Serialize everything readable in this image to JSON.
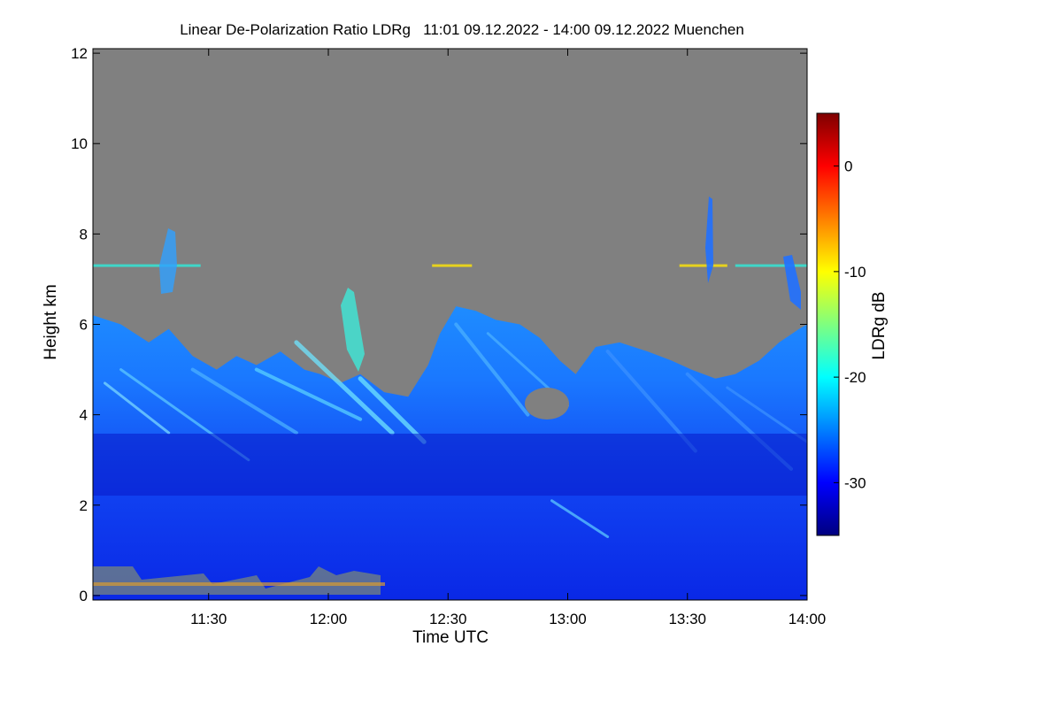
{
  "chart_data": {
    "type": "heatmap",
    "title": "Linear De-Polarization Ratio LDRg   11:01 09.12.2022 - 14:00 09.12.2022 Muenchen",
    "xlabel": "Time UTC",
    "ylabel": "Height km",
    "x_range_min": [
      661,
      840
    ],
    "y_range_km": [
      -0.1,
      12.1
    ],
    "x_ticks": [
      {
        "label": "11:30",
        "value": 690
      },
      {
        "label": "12:00",
        "value": 720
      },
      {
        "label": "12:30",
        "value": 750
      },
      {
        "label": "13:00",
        "value": 780
      },
      {
        "label": "13:30",
        "value": 810
      },
      {
        "label": "14:00",
        "value": 840
      }
    ],
    "y_ticks": [
      {
        "label": "0",
        "value": 0
      },
      {
        "label": "2",
        "value": 2
      },
      {
        "label": "4",
        "value": 4
      },
      {
        "label": "6",
        "value": 6
      },
      {
        "label": "8",
        "value": 8
      },
      {
        "label": "10",
        "value": 10
      },
      {
        "label": "12",
        "value": 12
      }
    ],
    "colorbar": {
      "label": "LDRg dB",
      "range": [
        -35,
        5
      ],
      "ticks": [
        {
          "label": "0",
          "value": 0
        },
        {
          "label": "-10",
          "value": -10
        },
        {
          "label": "-20",
          "value": -20
        },
        {
          "label": "-30",
          "value": -30
        }
      ],
      "colors": [
        "#00007f",
        "#0000ff",
        "#007fff",
        "#00ffff",
        "#7fff7f",
        "#ffff00",
        "#ff7f00",
        "#ff0000",
        "#7f0000"
      ]
    },
    "no_data_color": "#808080",
    "cloud_top_km": [
      {
        "t": 661,
        "h": 6.2
      },
      {
        "t": 668,
        "h": 6.0
      },
      {
        "t": 675,
        "h": 5.6
      },
      {
        "t": 680,
        "h": 5.9
      },
      {
        "t": 686,
        "h": 5.3
      },
      {
        "t": 692,
        "h": 5.0
      },
      {
        "t": 697,
        "h": 5.3
      },
      {
        "t": 702,
        "h": 5.1
      },
      {
        "t": 708,
        "h": 5.4
      },
      {
        "t": 714,
        "h": 5.0
      },
      {
        "t": 718,
        "h": 4.9
      },
      {
        "t": 723,
        "h": 4.7
      },
      {
        "t": 728,
        "h": 4.9
      },
      {
        "t": 734,
        "h": 4.5
      },
      {
        "t": 740,
        "h": 4.4
      },
      {
        "t": 745,
        "h": 5.1
      },
      {
        "t": 748,
        "h": 5.8
      },
      {
        "t": 752,
        "h": 6.4
      },
      {
        "t": 757,
        "h": 6.3
      },
      {
        "t": 762,
        "h": 6.1
      },
      {
        "t": 768,
        "h": 6.0
      },
      {
        "t": 773,
        "h": 5.7
      },
      {
        "t": 778,
        "h": 5.2
      },
      {
        "t": 782,
        "h": 4.9
      },
      {
        "t": 787,
        "h": 5.5
      },
      {
        "t": 793,
        "h": 5.6
      },
      {
        "t": 800,
        "h": 5.4
      },
      {
        "t": 806,
        "h": 5.2
      },
      {
        "t": 811,
        "h": 5.0
      },
      {
        "t": 817,
        "h": 4.8
      },
      {
        "t": 822,
        "h": 4.9
      },
      {
        "t": 828,
        "h": 5.2
      },
      {
        "t": 833,
        "h": 5.6
      },
      {
        "t": 838,
        "h": 5.9
      },
      {
        "t": 840,
        "h": 6.0
      }
    ],
    "cirrus_layer_km": 7.3
  }
}
